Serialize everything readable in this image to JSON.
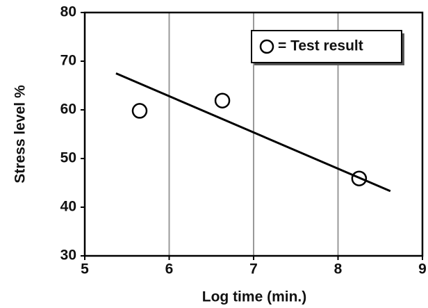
{
  "chart_data": {
    "type": "scatter",
    "x_label": "Log time (min.)",
    "y_label": "Stress level %",
    "xlim": [
      5,
      9
    ],
    "xticks": [
      5,
      6,
      7,
      8,
      9
    ],
    "ylim": [
      30,
      80
    ],
    "yticks": [
      30,
      40,
      50,
      60,
      70,
      80
    ],
    "grid": "x",
    "legend": "upper right",
    "series": [
      {
        "name": "= Test result",
        "color": "#000000",
        "mode": "markers",
        "x": [
          5.65,
          6.63,
          8.25
        ],
        "values": [
          59.8,
          61.9,
          45.9
        ]
      },
      {
        "color": "#000000",
        "mode": "line",
        "x": [
          5.37,
          8.62
        ],
        "values": [
          67.5,
          43.3
        ]
      }
    ]
  }
}
